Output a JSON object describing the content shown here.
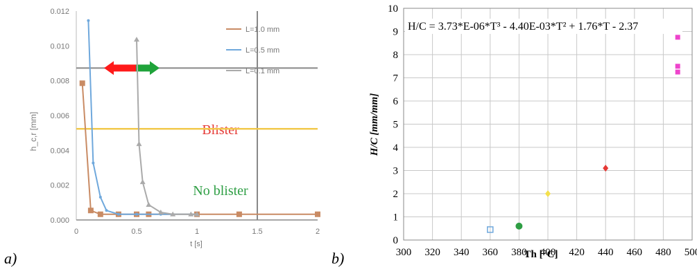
{
  "panel_labels": {
    "a": "a)",
    "b": "b)"
  },
  "chart_data": [
    {
      "panel": "a)",
      "type": "line",
      "ylabel": "h_c,r [mm]",
      "xlabel": "t [s]",
      "ylim": [
        0,
        0.011
      ],
      "xlim": [
        0,
        2
      ],
      "y_ticks": [
        "0.000",
        "0.002",
        "0.004",
        "0.006",
        "0.008",
        "0.010",
        "0.012"
      ],
      "x_ticks": [
        "0",
        "0.5",
        "1",
        "1.5",
        "2"
      ],
      "threshold": 0.0048,
      "reference_x": 1.5,
      "reference_y": 0.008,
      "legend": [
        "L=1.0 mm",
        "L=0.5 mm",
        "L=0.1 mm"
      ],
      "series": [
        {
          "name": "L=1.0 mm",
          "color": "#c98b64",
          "x": [
            0.05,
            0.12,
            0.2,
            0.35,
            0.5,
            0.6,
            1.0,
            1.35,
            2.0
          ],
          "y": [
            0.0072,
            0.0005,
            0.0003,
            0.0003,
            0.0003,
            0.0003,
            0.0003,
            0.0003,
            0.0003
          ]
        },
        {
          "name": "L=0.5 mm",
          "color": "#6fa8dc",
          "x": [
            0.1,
            0.14,
            0.2,
            0.25,
            0.35,
            0.5,
            0.7,
            1.0
          ],
          "y": [
            0.0105,
            0.003,
            0.0012,
            0.0005,
            0.0003,
            0.0003,
            0.0003,
            0.0003
          ]
        },
        {
          "name": "L=0.1 mm",
          "color": "#aaaaaa",
          "x": [
            0.5,
            0.52,
            0.55,
            0.6,
            0.7,
            0.8,
            0.95,
            1.0
          ],
          "y": [
            0.0095,
            0.004,
            0.002,
            0.0008,
            0.0004,
            0.0003,
            0.0003,
            0.0003
          ]
        }
      ],
      "annotations": {
        "blister": "Blister",
        "no_blister": "No blister",
        "blister_color": "#e53935",
        "no_blister_color": "#2e9e44"
      }
    },
    {
      "panel": "b)",
      "type": "scatter",
      "ylabel": "H/C [mm/mm]",
      "xlabel": "Th [°C]",
      "xlim": [
        300,
        500
      ],
      "ylim": [
        0,
        10
      ],
      "x_ticks": [
        300,
        320,
        340,
        360,
        380,
        400,
        420,
        440,
        460,
        480,
        500
      ],
      "y_ticks": [
        0,
        1,
        2,
        3,
        4,
        5,
        6,
        7,
        8,
        9,
        10
      ],
      "grid": true,
      "equation": "H/C = 3.73*E-06*T³ - 4.40E-03*T² + 1.76*T - 2.37",
      "fit": {
        "a": 3.73e-06,
        "b": -0.0044,
        "c": 1.76,
        "d": -2.37,
        "x_from": 360,
        "x_to": 490,
        "color": "#666666"
      },
      "points": [
        {
          "x": 360,
          "y": 0.45,
          "color": "#6fa8dc",
          "shape": "square-open"
        },
        {
          "x": 380,
          "y": 0.6,
          "color": "#2e9e44",
          "shape": "circle"
        },
        {
          "x": 400,
          "y": 2.0,
          "color": "#f4e04d",
          "shape": "diamond"
        },
        {
          "x": 440,
          "y": 3.1,
          "color": "#e53935",
          "shape": "diamond"
        },
        {
          "x": 490,
          "y": 8.75,
          "color": "#ee44cc",
          "shape": "square"
        },
        {
          "x": 490,
          "y": 7.5,
          "color": "#ee44cc",
          "shape": "square"
        },
        {
          "x": 490,
          "y": 7.25,
          "color": "#ee44cc",
          "shape": "square"
        }
      ]
    }
  ]
}
